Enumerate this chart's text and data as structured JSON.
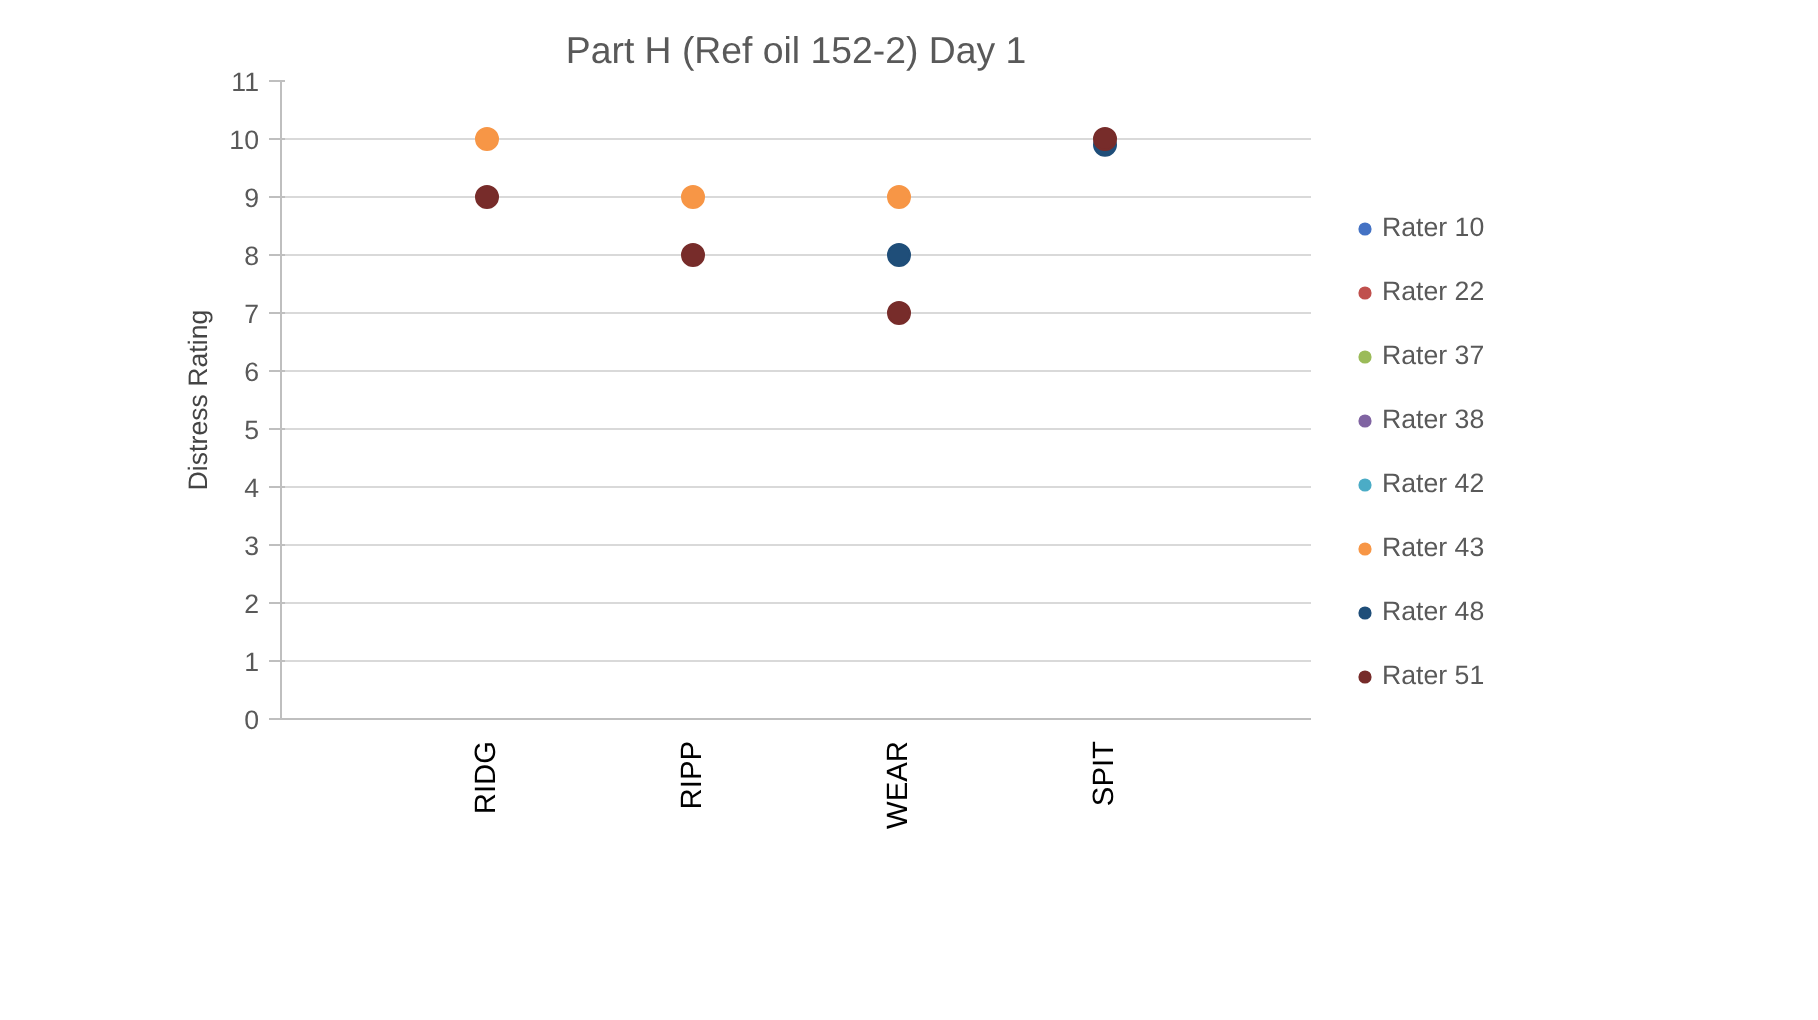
{
  "chart_data": {
    "type": "scatter",
    "title": "Part H (Ref oil 152-2) Day 1",
    "ylabel": "Distress Rating",
    "categories": [
      "RIDG",
      "RIPP",
      "WEAR",
      "SPIT"
    ],
    "ylim": [
      0,
      11
    ],
    "yticks": [
      0,
      1,
      2,
      3,
      4,
      5,
      6,
      7,
      8,
      9,
      10,
      11
    ],
    "grid": "y",
    "legend": "right",
    "marker": "circle",
    "series": [
      {
        "name": "Rater 10",
        "color": "#4472c4",
        "values": [
          null,
          null,
          null,
          null
        ]
      },
      {
        "name": "Rater 22",
        "color": "#c0504d",
        "values": [
          null,
          null,
          null,
          null
        ]
      },
      {
        "name": "Rater 37",
        "color": "#9bbb59",
        "values": [
          null,
          null,
          null,
          null
        ]
      },
      {
        "name": "Rater 38",
        "color": "#8064a2",
        "values": [
          null,
          null,
          null,
          null
        ]
      },
      {
        "name": "Rater 42",
        "color": "#4bacc6",
        "values": [
          null,
          null,
          null,
          null
        ]
      },
      {
        "name": "Rater 43",
        "color": "#f79646",
        "values": [
          10,
          9,
          9,
          null
        ]
      },
      {
        "name": "Rater 48",
        "color": "#1f4e79",
        "values": [
          null,
          null,
          8,
          9.9
        ]
      },
      {
        "name": "Rater 51",
        "color": "#772c2a",
        "values": [
          9,
          8,
          7,
          10
        ]
      }
    ]
  }
}
